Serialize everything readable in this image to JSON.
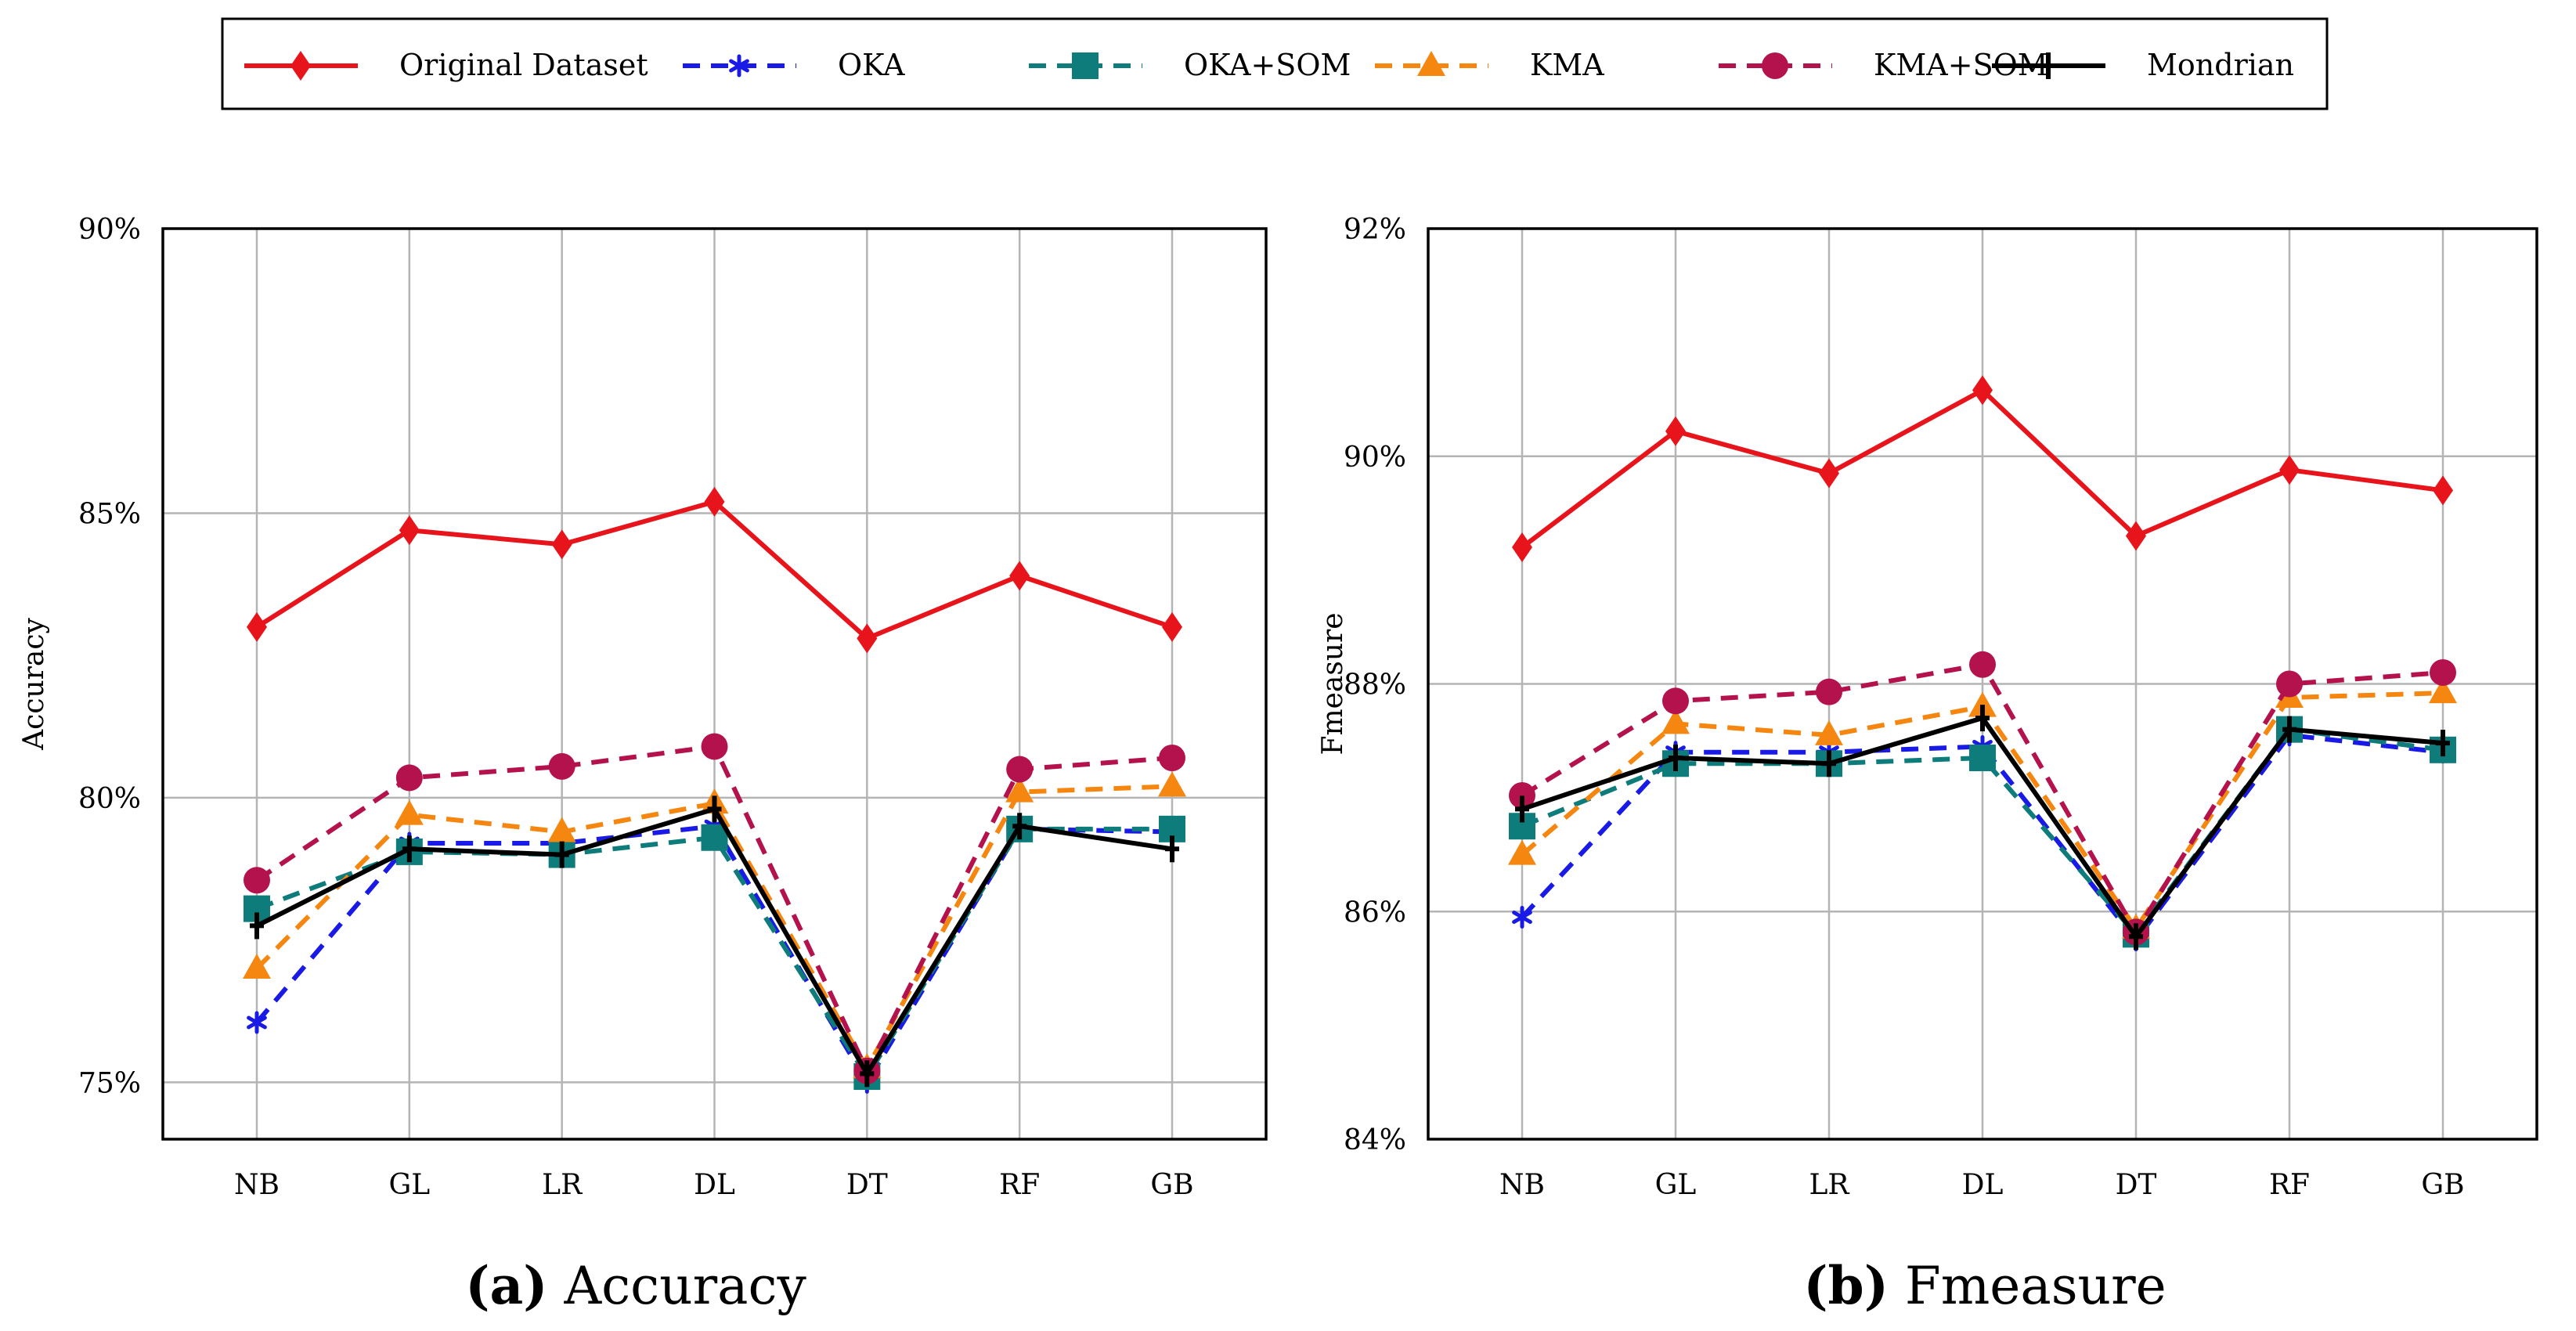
{
  "legend": {
    "entries": [
      {
        "name": "Original Dataset",
        "color": "#e8141b",
        "marker": "diamond",
        "dash": "solid"
      },
      {
        "name": "OKA",
        "color": "#1a1ae6",
        "marker": "star",
        "dash": "dashed"
      },
      {
        "name": "OKA+SOM",
        "color": "#0f7c7c",
        "marker": "square",
        "dash": "dashed"
      },
      {
        "name": "KMA",
        "color": "#f5860f",
        "marker": "triangle",
        "dash": "dashed"
      },
      {
        "name": "KMA+SOM",
        "color": "#b3124d",
        "marker": "circle",
        "dash": "dashed"
      },
      {
        "name": "Mondrian",
        "color": "#000000",
        "marker": "plus",
        "dash": "solid"
      }
    ]
  },
  "chart_data": [
    {
      "type": "line",
      "panel_label": "(a)",
      "title": "Accuracy",
      "xlabel": "",
      "ylabel": "Accuracy",
      "categories": [
        "NB",
        "GL",
        "LR",
        "DL",
        "DT",
        "RF",
        "GB"
      ],
      "ylim": [
        74,
        90
      ],
      "yticks": [
        75,
        80,
        85,
        90
      ],
      "ytick_labels": [
        "75%",
        "80%",
        "85%",
        "90%"
      ],
      "grid": true,
      "series": [
        {
          "name": "Original Dataset",
          "values": [
            83.0,
            84.7,
            84.45,
            85.2,
            82.8,
            83.9,
            83.0
          ]
        },
        {
          "name": "OKA",
          "values": [
            76.05,
            79.2,
            79.2,
            79.5,
            75.0,
            79.45,
            79.4
          ]
        },
        {
          "name": "OKA+SOM",
          "values": [
            78.05,
            79.05,
            79.0,
            79.3,
            75.1,
            79.45,
            79.45
          ]
        },
        {
          "name": "KMA",
          "values": [
            77.0,
            79.7,
            79.4,
            79.9,
            75.25,
            80.1,
            80.2
          ]
        },
        {
          "name": "KMA+SOM",
          "values": [
            78.55,
            80.35,
            80.55,
            80.9,
            75.2,
            80.5,
            80.7
          ]
        },
        {
          "name": "Mondrian",
          "values": [
            77.75,
            79.1,
            79.0,
            79.8,
            75.15,
            79.5,
            79.1
          ]
        }
      ]
    },
    {
      "type": "line",
      "panel_label": "(b)",
      "title": "Fmeasure",
      "xlabel": "",
      "ylabel": "Fmeasure",
      "categories": [
        "NB",
        "GL",
        "LR",
        "DL",
        "DT",
        "RF",
        "GB"
      ],
      "ylim": [
        84,
        92
      ],
      "yticks": [
        84,
        86,
        88,
        90,
        92
      ],
      "ytick_labels": [
        "84%",
        "86%",
        "88%",
        "90%",
        "92%"
      ],
      "grid": true,
      "series": [
        {
          "name": "Original Dataset",
          "values": [
            89.2,
            90.22,
            89.85,
            90.58,
            89.3,
            89.88,
            89.7
          ]
        },
        {
          "name": "OKA",
          "values": [
            85.95,
            87.4,
            87.4,
            87.45,
            85.75,
            87.55,
            87.4
          ]
        },
        {
          "name": "OKA+SOM",
          "values": [
            86.75,
            87.3,
            87.3,
            87.35,
            85.8,
            87.6,
            87.42
          ]
        },
        {
          "name": "KMA",
          "values": [
            86.5,
            87.65,
            87.55,
            87.8,
            85.85,
            87.88,
            87.92
          ]
        },
        {
          "name": "KMA+SOM",
          "values": [
            87.02,
            87.85,
            87.93,
            88.17,
            85.82,
            88.0,
            88.1
          ]
        },
        {
          "name": "Mondrian",
          "values": [
            86.9,
            87.35,
            87.3,
            87.7,
            85.78,
            87.6,
            87.48
          ]
        }
      ]
    }
  ]
}
